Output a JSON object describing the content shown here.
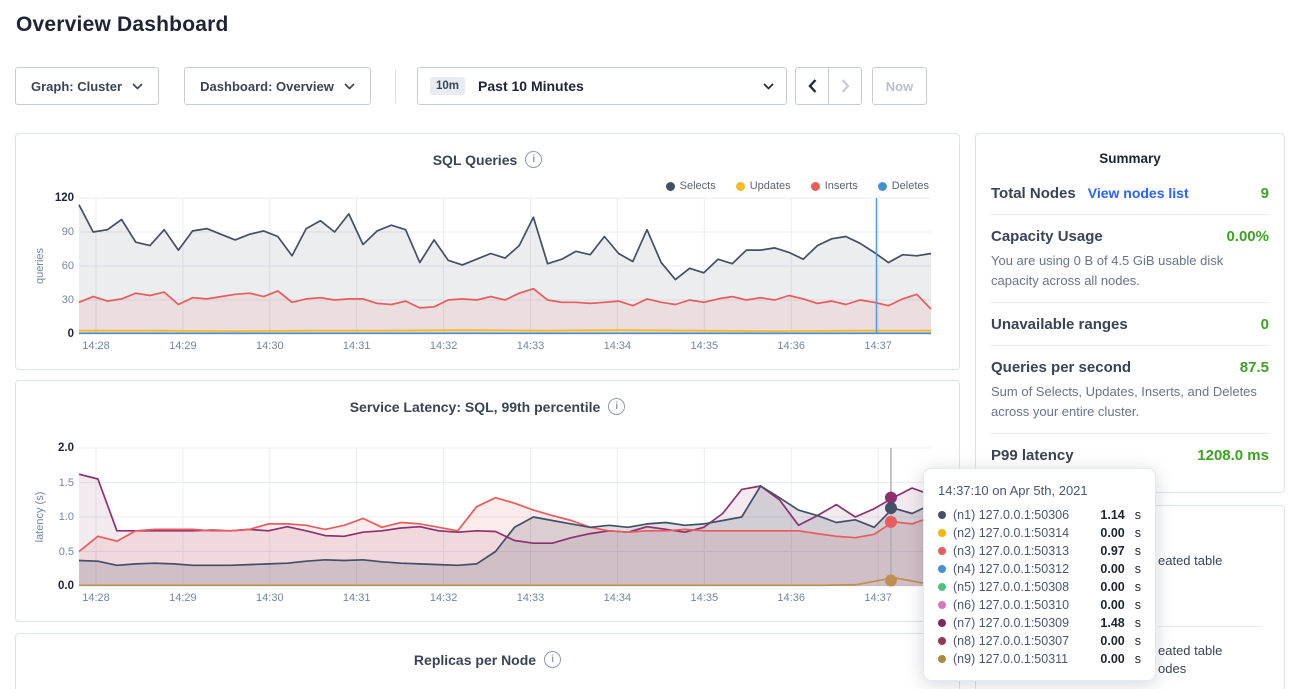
{
  "page": {
    "title": "Overview Dashboard"
  },
  "toolbar": {
    "graph_label": "Graph: Cluster",
    "dashboard_label": "Dashboard: Overview",
    "range_badge": "10m",
    "range_label": "Past 10 Minutes",
    "now_label": "Now"
  },
  "chart_data": [
    {
      "type": "line",
      "title": "SQL Queries",
      "ylabel": "queries",
      "ylim": [
        0,
        120
      ],
      "y_ticks": [
        "120",
        "90",
        "60",
        "30",
        "0"
      ],
      "x_ticks": [
        "14:28",
        "14:29",
        "14:30",
        "14:31",
        "14:32",
        "14:33",
        "14:34",
        "14:35",
        "14:36",
        "14:37"
      ],
      "grid": true,
      "legend_position": "top-right",
      "series": [
        {
          "name": "Selects",
          "color": "#434f66",
          "fill": "rgba(67,79,102,0.10)",
          "values": [
            114,
            90,
            92,
            101,
            81,
            78,
            92,
            74,
            91,
            93,
            88,
            83,
            88,
            91,
            86,
            69,
            93,
            100,
            90,
            106,
            79,
            91,
            96,
            92,
            63,
            83,
            65,
            61,
            66,
            71,
            67,
            78,
            103,
            62,
            66,
            73,
            70,
            86,
            71,
            64,
            92,
            63,
            48,
            58,
            54,
            66,
            62,
            74,
            74,
            76,
            72,
            66,
            78,
            84,
            86,
            80,
            72,
            63,
            70,
            69,
            71
          ]
        },
        {
          "name": "Updates",
          "color": "#f5ba25",
          "fill": "rgba(245,186,37,0.18)",
          "values": [
            3,
            3,
            2.5,
            3,
            3,
            3.5,
            3,
            3.5,
            3,
            2.5,
            3,
            3
          ]
        },
        {
          "name": "Inserts",
          "color": "#e85c5c",
          "fill": "rgba(232,92,92,0.10)",
          "values": [
            28,
            33,
            29,
            31,
            36,
            34,
            37,
            26,
            32,
            31,
            33,
            35,
            36,
            33,
            38,
            28,
            31,
            32,
            30,
            31,
            31,
            27,
            26,
            29,
            23,
            24,
            30,
            31,
            30,
            33,
            30,
            36,
            40,
            30,
            28,
            28,
            27,
            28,
            29,
            25,
            31,
            28,
            26,
            30,
            28,
            31,
            33,
            30,
            32,
            30,
            34,
            31,
            27,
            29,
            26,
            30,
            28,
            25,
            31,
            35,
            22
          ]
        },
        {
          "name": "Deletes",
          "color": "#4490d4",
          "fill": "none",
          "values": [
            0.6,
            0.6
          ]
        }
      ],
      "crosshair": {
        "x_frac": 0.936,
        "color": "#5b9bd5",
        "dots": []
      }
    },
    {
      "type": "line",
      "title": "Service Latency: SQL, 99th percentile",
      "ylabel": "latency (s)",
      "ylim": [
        0,
        2
      ],
      "y_ticks": [
        "2.0",
        "1.5",
        "1.0",
        "0.5",
        "0.0"
      ],
      "x_ticks": [
        "14:28",
        "14:29",
        "14:30",
        "14:31",
        "14:32",
        "14:33",
        "14:34",
        "14:35",
        "14:36",
        "14:37"
      ],
      "grid": true,
      "series": [
        {
          "name": "(n7) 127.0.0.1:50309",
          "color": "#8e3070",
          "fill": "rgba(142,48,112,0.10)",
          "values": [
            1.62,
            1.55,
            0.8,
            0.8,
            0.8,
            0.8,
            0.8,
            0.81,
            0.8,
            0.82,
            0.8,
            0.86,
            0.8,
            0.73,
            0.72,
            0.78,
            0.8,
            0.84,
            0.86,
            0.8,
            0.78,
            0.8,
            0.79,
            0.66,
            0.62,
            0.62,
            0.7,
            0.76,
            0.8,
            0.78,
            0.86,
            0.82,
            0.78,
            0.85,
            1.05,
            1.4,
            1.45,
            1.25,
            0.88,
            1.02,
            1.18,
            1.0,
            1.12,
            1.28,
            1.42,
            1.32
          ]
        },
        {
          "name": "(n3) 127.0.0.1:50313",
          "color": "#e85c5c",
          "fill": "rgba(232,92,92,0.12)",
          "values": [
            0.5,
            0.72,
            0.65,
            0.8,
            0.82,
            0.82,
            0.82,
            0.8,
            0.8,
            0.82,
            0.9,
            0.9,
            0.88,
            0.82,
            0.88,
            0.98,
            0.85,
            0.92,
            0.9,
            0.85,
            0.8,
            1.15,
            1.28,
            1.2,
            1.1,
            1.02,
            0.95,
            0.85,
            0.8,
            0.78,
            0.8,
            0.8,
            0.82,
            0.8,
            0.8,
            0.8,
            0.8,
            0.8,
            0.8,
            0.76,
            0.72,
            0.7,
            0.75,
            0.93,
            0.9,
            1.0
          ]
        },
        {
          "name": "(n1) 127.0.0.1:50306",
          "color": "#434f66",
          "fill": "rgba(67,79,102,0.18)",
          "values": [
            0.37,
            0.36,
            0.3,
            0.32,
            0.33,
            0.32,
            0.3,
            0.3,
            0.3,
            0.31,
            0.32,
            0.33,
            0.36,
            0.38,
            0.37,
            0.38,
            0.35,
            0.33,
            0.32,
            0.31,
            0.3,
            0.32,
            0.5,
            0.85,
            1.0,
            0.95,
            0.9,
            0.85,
            0.88,
            0.85,
            0.9,
            0.92,
            0.88,
            0.9,
            0.95,
            1.0,
            1.45,
            1.28,
            1.1,
            1.02,
            0.92,
            0.96,
            0.85,
            1.13,
            1.05,
            1.18
          ]
        },
        {
          "name": "(n9) 127.0.0.1:50311",
          "color": "#bf8f4f",
          "fill": "none",
          "values": [
            0.01,
            0.01,
            0.01,
            0.01,
            0.01,
            0.01,
            0.01,
            0.01,
            0.01,
            0.01,
            0.01,
            0.01,
            0.01,
            0.01,
            0.01,
            0.01,
            0.01,
            0.01,
            0.01,
            0.01,
            0.01,
            0.02,
            0.12,
            0.02
          ]
        }
      ],
      "crosshair": {
        "x_frac": 0.953,
        "color": "#a9b1bd",
        "dots": [
          {
            "color": "#8e3070",
            "value": 1.28
          },
          {
            "color": "#434f66",
            "value": 1.13
          },
          {
            "color": "#e85c5c",
            "value": 0.93
          },
          {
            "color": "#bf8f4f",
            "value": 0.08
          }
        ]
      }
    },
    {
      "type": "line",
      "title": "Replicas per Node"
    }
  ],
  "summary": {
    "title": "Summary",
    "rows": [
      {
        "label": "Total Nodes",
        "link": "View nodes list",
        "value": "9"
      },
      {
        "label": "Capacity Usage",
        "value": "0.00%",
        "desc": "You are using 0 B of 4.5 GiB usable disk capacity across all nodes."
      },
      {
        "label": "Unavailable ranges",
        "value": "0"
      },
      {
        "label": "Queries per second",
        "value": "87.5",
        "desc": "Sum of Selects, Updates, Inserts, and Deletes across your entire cluster."
      },
      {
        "label": "P99 latency",
        "value": "1208.0 ms"
      }
    ],
    "accent_green": "#3ca224",
    "link_blue": "#2962ff"
  },
  "tooltip": {
    "time": "14:37:10",
    "time_suffix": " on Apr 5th, 2021",
    "rows": [
      {
        "color": "#434f66",
        "label": "(n1) 127.0.0.1:50306",
        "value": "1.14",
        "unit": "s"
      },
      {
        "color": "#f2b705",
        "label": "(n2) 127.0.0.1:50314",
        "value": "0.00",
        "unit": "s"
      },
      {
        "color": "#e85c5c",
        "label": "(n3) 127.0.0.1:50313",
        "value": "0.97",
        "unit": "s"
      },
      {
        "color": "#4490d4",
        "label": "(n4) 127.0.0.1:50312",
        "value": "0.00",
        "unit": "s"
      },
      {
        "color": "#4ec17e",
        "label": "(n5) 127.0.0.1:50308",
        "value": "0.00",
        "unit": "s"
      },
      {
        "color": "#d876c0",
        "label": "(n6) 127.0.0.1:50310",
        "value": "0.00",
        "unit": "s"
      },
      {
        "color": "#7d2a5e",
        "label": "(n7) 127.0.0.1:50309",
        "value": "1.48",
        "unit": "s"
      },
      {
        "color": "#943a55",
        "label": "(n8) 127.0.0.1:50307",
        "value": "0.00",
        "unit": "s"
      },
      {
        "color": "#ad8a3e",
        "label": "(n9) 127.0.0.1:50311",
        "value": "0.00",
        "unit": "s"
      }
    ]
  },
  "events_panel": {
    "fragments": [
      "eated table",
      "eated table",
      "odes"
    ]
  }
}
